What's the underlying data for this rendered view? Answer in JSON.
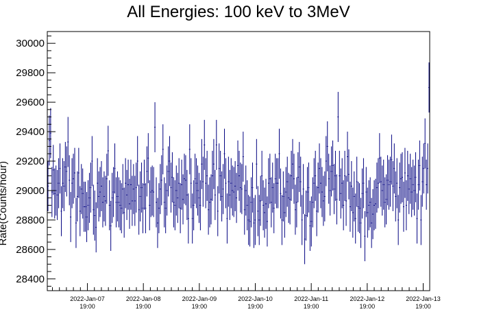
{
  "chart_data": {
    "type": "scatter",
    "style": "error-bars",
    "title": "All Energies:  100 keV to 3MeV",
    "ylabel": "Rate(Counts/hour)",
    "xlabel": "",
    "ylim": [
      28320,
      30080
    ],
    "xlim_hours": [
      -17.2,
      146.8
    ],
    "y_ticks": [
      28400,
      28600,
      28800,
      29000,
      29200,
      29400,
      29600,
      29800,
      30000
    ],
    "x_ticks": [
      {
        "date": "2022-Jan-07",
        "time": "19:00"
      },
      {
        "date": "2022-Jan-08",
        "time": "19:00"
      },
      {
        "date": "2022-Jan-09",
        "time": "19:00"
      },
      {
        "date": "2022-Jan-10",
        "time": "19:00"
      },
      {
        "date": "2022-Jan-11",
        "time": "19:00"
      },
      {
        "date": "2022-Jan-12",
        "time": "19:00"
      },
      {
        "date": "2022-Jan-13",
        "time": "19:00"
      }
    ],
    "series_color": "#000080",
    "error": 170,
    "grid": false,
    "legend": "none",
    "values": [
      29030,
      29340,
      29390,
      28990,
      29140,
      28980,
      29000,
      28970,
      29050,
      29150,
      28860,
      29050,
      29030,
      29160,
      29130,
      29330,
      29070,
      28820,
      29050,
      29080,
      29120,
      28780,
      28960,
      29120,
      28860,
      29010,
      28980,
      28890,
      28890,
      28820,
      28900,
      28950,
      29020,
      29200,
      28870,
      28830,
      28750,
      29050,
      28960,
      28990,
      29030,
      28920,
      28960,
      28930,
      29080,
      29270,
      28900,
      28760,
      28950,
      28990,
      29150,
      28920,
      28960,
      28920,
      28900,
      28880,
      29010,
      28850,
      29050,
      28970,
      29040,
      28910,
      29040,
      28930,
      29010,
      28930,
      29020,
      29200,
      28870,
      28960,
      29020,
      28880,
      29040,
      28880,
      29130,
      29220,
      28900,
      28990,
      29000,
      28990,
      29430,
      28920,
      28780,
      28880,
      29010,
      29070,
      29280,
      28920,
      28880,
      29000,
      29130,
      29200,
      29020,
      29090,
      28920,
      28900,
      29000,
      28950,
      29050,
      28880,
      29040,
      28940,
      29080,
      29070,
      28970,
      28810,
      29280,
      29050,
      28810,
      28900,
      29080,
      29050,
      29000,
      28950,
      28900,
      29180,
      29060,
      29310,
      29050,
      29100,
      28870,
      28920,
      28940,
      29100,
      29180,
      28970,
      29310,
      28860,
      29150,
      29100,
      28960,
      29010,
      29250,
      29050,
      28810,
      29060,
      28970,
      29050,
      29000,
      28990,
      29030,
      28950,
      29170,
      29100,
      29020,
      29010,
      29230,
      28870,
      29000,
      28900,
      28800,
      28790,
      28920,
      29020,
      28780,
      28800,
      29180,
      28860,
      28800,
      28930,
      29100,
      28900,
      28850,
      28910,
      28790,
      29050,
      29080,
      28920,
      29020,
      28880,
      29080,
      29050,
      29050,
      29250,
      28980,
      28800,
      28960,
      28850,
      28990,
      29060,
      28950,
      28940,
      29100,
      29180,
      29080,
      28870,
      28920,
      29090,
      29160,
      29060,
      28800,
      29010,
      28670,
      28830,
      28990,
      29020,
      28760,
      28790,
      28920,
      29050,
      29100,
      28860,
      29020,
      29150,
      29050,
      28990,
      28930,
      28960,
      29200,
      29300,
      29080,
      29000,
      29130,
      29170,
      29010,
      29100,
      28940,
      29500,
      29100,
      28980,
      29050,
      28900,
      29100,
      28930,
      29230,
      29110,
      28890,
      29030,
      28850,
      28960,
      28810,
      29060,
      28890,
      28880,
      28780,
      28980,
      29050,
      28690,
      28990,
      28850,
      28900,
      28920,
      28780,
      28840,
      28900,
      28910,
      29020,
      29050,
      29220,
      29060,
      29000,
      29040,
      28920,
      28940,
      29070,
      29040,
      29060,
      29210,
      29030,
      29150,
      28960,
      29050,
      28800,
      29020,
      29080,
      29090,
      28890,
      29120,
      28900,
      29100,
      29010,
      29080,
      28990,
      29040,
      29000,
      29090,
      28810,
      29040,
      29170,
      28800,
      29060,
      29150,
      29320,
      29040,
      29150,
      29700
    ]
  }
}
